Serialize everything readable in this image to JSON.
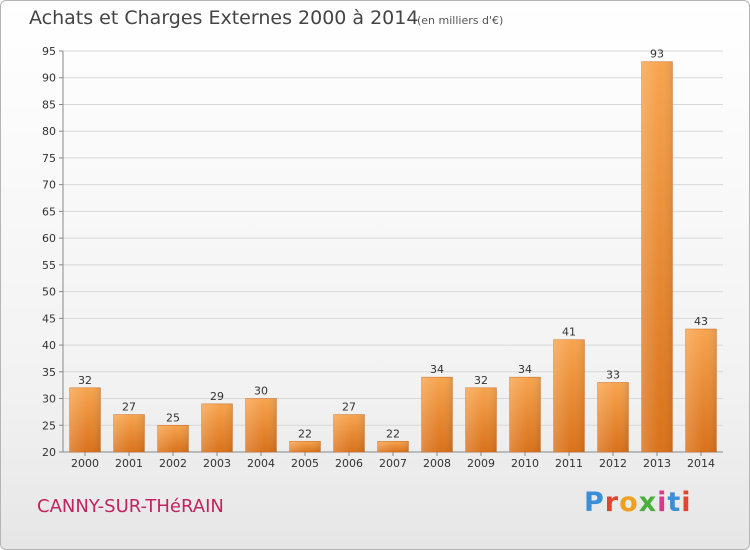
{
  "chart_data": {
    "type": "bar",
    "title": "Achats et Charges Externes 2000 à 2014",
    "subtitle": "(en milliers d'€)",
    "categories": [
      "2000",
      "2001",
      "2002",
      "2003",
      "2004",
      "2005",
      "2006",
      "2007",
      "2008",
      "2009",
      "2010",
      "2011",
      "2012",
      "2013",
      "2014"
    ],
    "values": [
      32,
      27,
      25,
      29,
      30,
      22,
      27,
      22,
      34,
      32,
      34,
      41,
      33,
      93,
      43
    ],
    "ylim": [
      20,
      95
    ],
    "yticks": [
      20,
      25,
      30,
      35,
      40,
      45,
      50,
      55,
      60,
      65,
      70,
      75,
      80,
      85,
      90,
      95
    ],
    "grid": true,
    "bar_color": "#f0922e",
    "xlabel": "",
    "ylabel": ""
  },
  "footer": {
    "place": "CANNY-SUR-THéRAIN",
    "brand": [
      "P",
      "r",
      "o",
      "x",
      "i",
      "t",
      "i"
    ],
    "brand_colors": [
      "#3a8fd6",
      "#e2452c",
      "#f0a020",
      "#4cae3c",
      "#d83a8c",
      "#3a8fd6",
      "#e2452c"
    ]
  },
  "colors": {
    "place": "#c0245c",
    "grid": "#d8d8d8"
  }
}
